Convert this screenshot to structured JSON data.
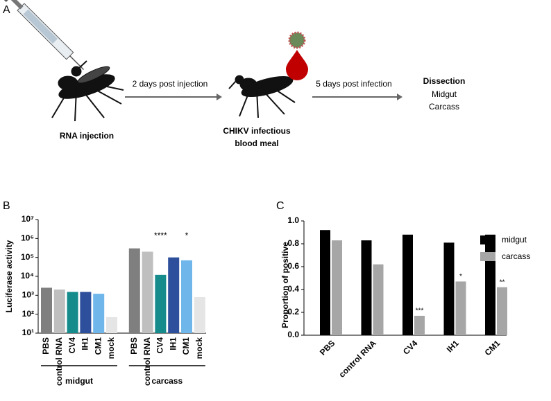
{
  "panels": {
    "a": "A",
    "b": "B",
    "c": "C"
  },
  "diagram": {
    "step1": "RNA injection",
    "arrow1": "2 days post injection",
    "step2": [
      "CHIKV infectious",
      "blood meal"
    ],
    "arrow2": "5 days post infection",
    "step3": {
      "title": "Dissection",
      "items": [
        "Midgut",
        "Carcass"
      ]
    }
  },
  "chart_data": [
    {
      "type": "bar",
      "y_label": "Luciferase activity",
      "log_scale": true,
      "categories": [
        "PBS",
        "control RNA",
        "CV4",
        "IH1",
        "CM1",
        "mock",
        "PBS",
        "control RNA",
        "CV4",
        "IH1",
        "CM1",
        "mock"
      ],
      "values": [
        2500,
        2000,
        1500,
        1500,
        1200,
        70,
        300000,
        200000,
        12000,
        100000,
        70000,
        800
      ],
      "colors": [
        "#7f7f7f",
        "#bfbfbf",
        "#168b8b",
        "#2e4f9c",
        "#6fb6ea",
        "#e5e5e5",
        "#7f7f7f",
        "#bfbfbf",
        "#168b8b",
        "#2e4f9c",
        "#6fb6ea",
        "#e5e5e5"
      ],
      "annotations": [
        null,
        null,
        null,
        null,
        null,
        null,
        null,
        null,
        "****",
        null,
        "*",
        null
      ],
      "group_labels": [
        "midgut",
        "carcass"
      ],
      "ylim": [
        10,
        10000000
      ],
      "yticks": [
        {
          "value": 10,
          "label": "10¹"
        },
        {
          "value": 100,
          "label": "10²"
        },
        {
          "value": 1000,
          "label": "10³"
        },
        {
          "value": 10000,
          "label": "10⁴"
        },
        {
          "value": 100000,
          "label": "10⁵"
        },
        {
          "value": 1000000,
          "label": "10⁶"
        },
        {
          "value": 10000000,
          "label": "10⁷"
        }
      ]
    },
    {
      "type": "grouped-bar",
      "y_label": "Proportion of positive",
      "categories": [
        "PBS",
        "control RNA",
        "CV4",
        "IH1",
        "CM1"
      ],
      "series": [
        {
          "name": "midgut",
          "color": "#000000",
          "values": [
            0.92,
            0.83,
            0.88,
            0.81,
            0.88
          ],
          "annotations": [
            null,
            null,
            null,
            null,
            null
          ]
        },
        {
          "name": "carcass",
          "color": "#a6a6a6",
          "values": [
            0.83,
            0.62,
            0.17,
            0.47,
            0.42
          ],
          "annotations": [
            null,
            null,
            "***",
            "*",
            "**"
          ]
        }
      ],
      "ylim": [
        0,
        1
      ],
      "yticks": [
        {
          "value": 0,
          "label": "0.0"
        },
        0.2,
        0.4,
        0.6,
        0.8,
        {
          "value": 1,
          "label": "1.0"
        }
      ],
      "legend": "right"
    }
  ]
}
